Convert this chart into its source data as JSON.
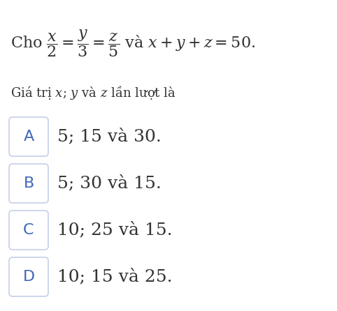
{
  "background_color": "#ffffff",
  "line1": "Cho $\\dfrac{x}{2} = \\dfrac{y}{3} = \\dfrac{z}{5}$ và $x + y + z = 50.$",
  "subtitle_text": "Giá trị $x$; $y$ và $z$ lần lượt là",
  "options": [
    {
      "label": "A",
      "text": "5; 15 và 30."
    },
    {
      "label": "B",
      "text": "5; 30 và 15."
    },
    {
      "label": "C",
      "text": "10; 25 và 15."
    },
    {
      "label": "D",
      "text": "10; 15 và 25."
    }
  ],
  "label_color": "#4169b8",
  "text_color": "#333333",
  "box_edge_color": "#c5cfe8",
  "box_facecolor": "#ffffff",
  "title_fontsize": 16,
  "subtitle_fontsize": 13,
  "option_fontsize": 18,
  "label_fontsize": 16
}
